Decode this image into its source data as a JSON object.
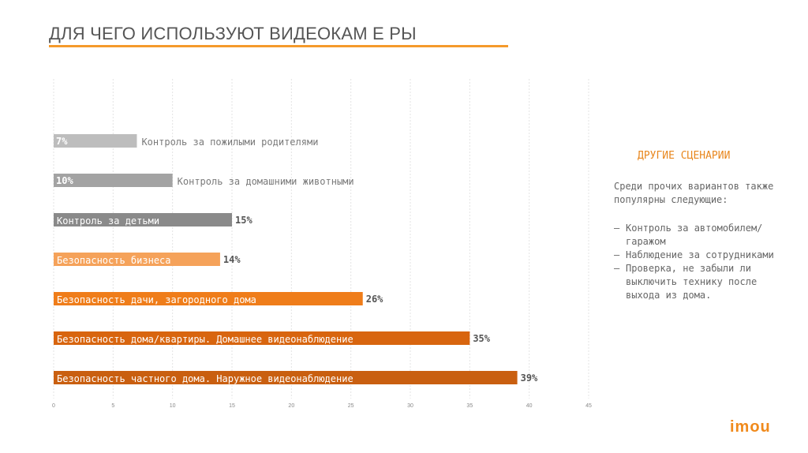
{
  "slide": {
    "title": "ДЛЯ ЧЕГО ИСПОЛЬЗУЮТ ВИДЕОКАМ Е РЫ",
    "accent_color": "#f59a2b"
  },
  "chart_data": {
    "type": "bar",
    "orientation": "horizontal",
    "title": "",
    "xlabel": "",
    "ylabel": "",
    "xlim": [
      0,
      45
    ],
    "x_ticks": [
      "0",
      "5",
      "10",
      "15",
      "20",
      "25",
      "30",
      "35",
      "40",
      "45"
    ],
    "grid": true,
    "legend": "none",
    "categories": [
      "Контроль за пожилыми родителями",
      "Контроль за домашними животными",
      "Контроль за детьми",
      "Безопасность бизнеса",
      "Безопасность дачи, загородного дома",
      "Безопасность дома/квартиры. Домашнее видеонаблюдение",
      "Безопасность частного дома. Наружное видеонаблюдение"
    ],
    "values": [
      7,
      10,
      15,
      14,
      26,
      35,
      39
    ],
    "value_labels": [
      "7%",
      "10%",
      "15%",
      "14%",
      "26%",
      "35%",
      "39%"
    ],
    "colors": [
      "#bdbdbd",
      "#a3a3a3",
      "#8a8a8a",
      "#f5a25a",
      "#ef7d1a",
      "#d8650f",
      "#c95f10"
    ]
  },
  "sidebar": {
    "title": "ДРУГИЕ СЦЕНАРИИ",
    "intro": "Среди прочих вариантов также популярны следующие:",
    "items": [
      "Контроль за автомобилем/гаражом",
      "Наблюдение за сотрудниками",
      "Проверка, не забыли ли выключить технику после выхода из дома."
    ],
    "bullet": "–"
  },
  "brand": {
    "logo_text": "imou",
    "color": "#f08a1c"
  }
}
